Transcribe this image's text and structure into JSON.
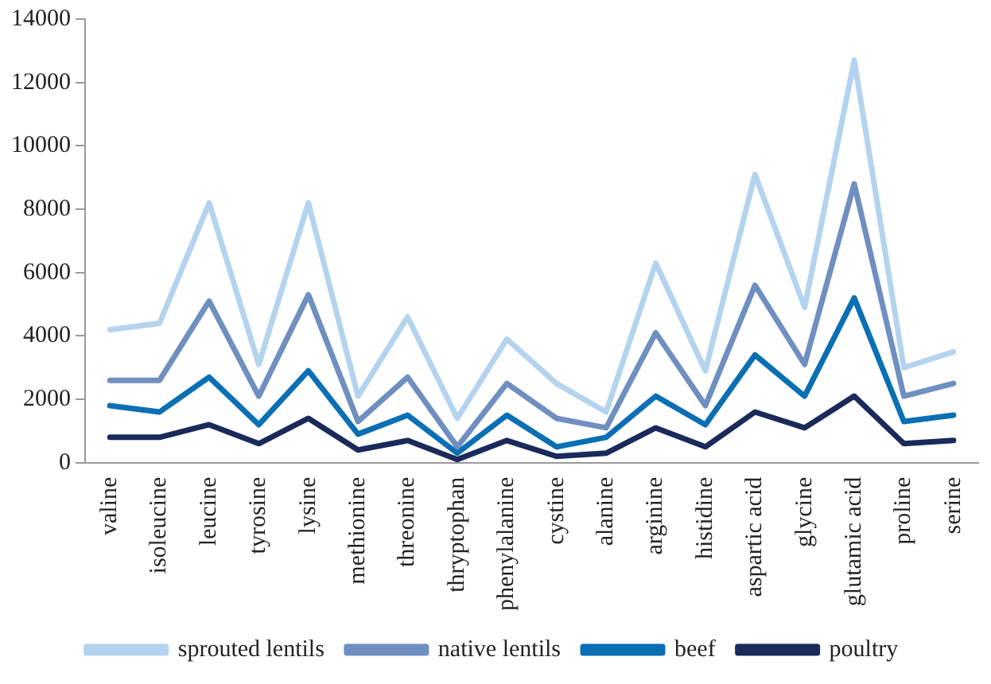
{
  "chart_data": {
    "type": "line",
    "categories": [
      "valine",
      "isoleucine",
      "leucine",
      "tyrosine",
      "lysine",
      "methionine",
      "threonine",
      "thryptophan",
      "phenylalanine",
      "cystine",
      "alanine",
      "arginine",
      "histidine",
      "aspartic acid",
      "glycine",
      "glutamic acid",
      "proline",
      "serine"
    ],
    "series": [
      {
        "name": "sprouted lentils",
        "color": "#b4d3ee",
        "values": [
          4200,
          4400,
          8200,
          3100,
          8200,
          2100,
          4600,
          1400,
          3900,
          2500,
          1600,
          6300,
          2900,
          9100,
          4900,
          12700,
          3000,
          3500
        ]
      },
      {
        "name": "native lentils",
        "color": "#6f8fc0",
        "values": [
          2600,
          2600,
          5100,
          2100,
          5300,
          1300,
          2700,
          500,
          2500,
          1400,
          1100,
          4100,
          1800,
          5600,
          3100,
          8800,
          2100,
          2500
        ]
      },
      {
        "name": "beef",
        "color": "#0a6fb4",
        "values": [
          1800,
          1600,
          2700,
          1200,
          2900,
          900,
          1500,
          300,
          1500,
          500,
          800,
          2100,
          1200,
          3400,
          2100,
          5200,
          1300,
          1500
        ]
      },
      {
        "name": "poultry",
        "color": "#1a2a5a",
        "values": [
          800,
          800,
          1200,
          600,
          1400,
          400,
          700,
          100,
          700,
          200,
          300,
          1100,
          500,
          1600,
          1100,
          2100,
          600,
          700
        ]
      }
    ],
    "ylim": [
      0,
      14000
    ],
    "yticks": [
      0,
      2000,
      4000,
      6000,
      8000,
      10000,
      12000,
      14000
    ],
    "grid": false,
    "legend": "bottom",
    "marker": "none",
    "line_style": "solid"
  }
}
